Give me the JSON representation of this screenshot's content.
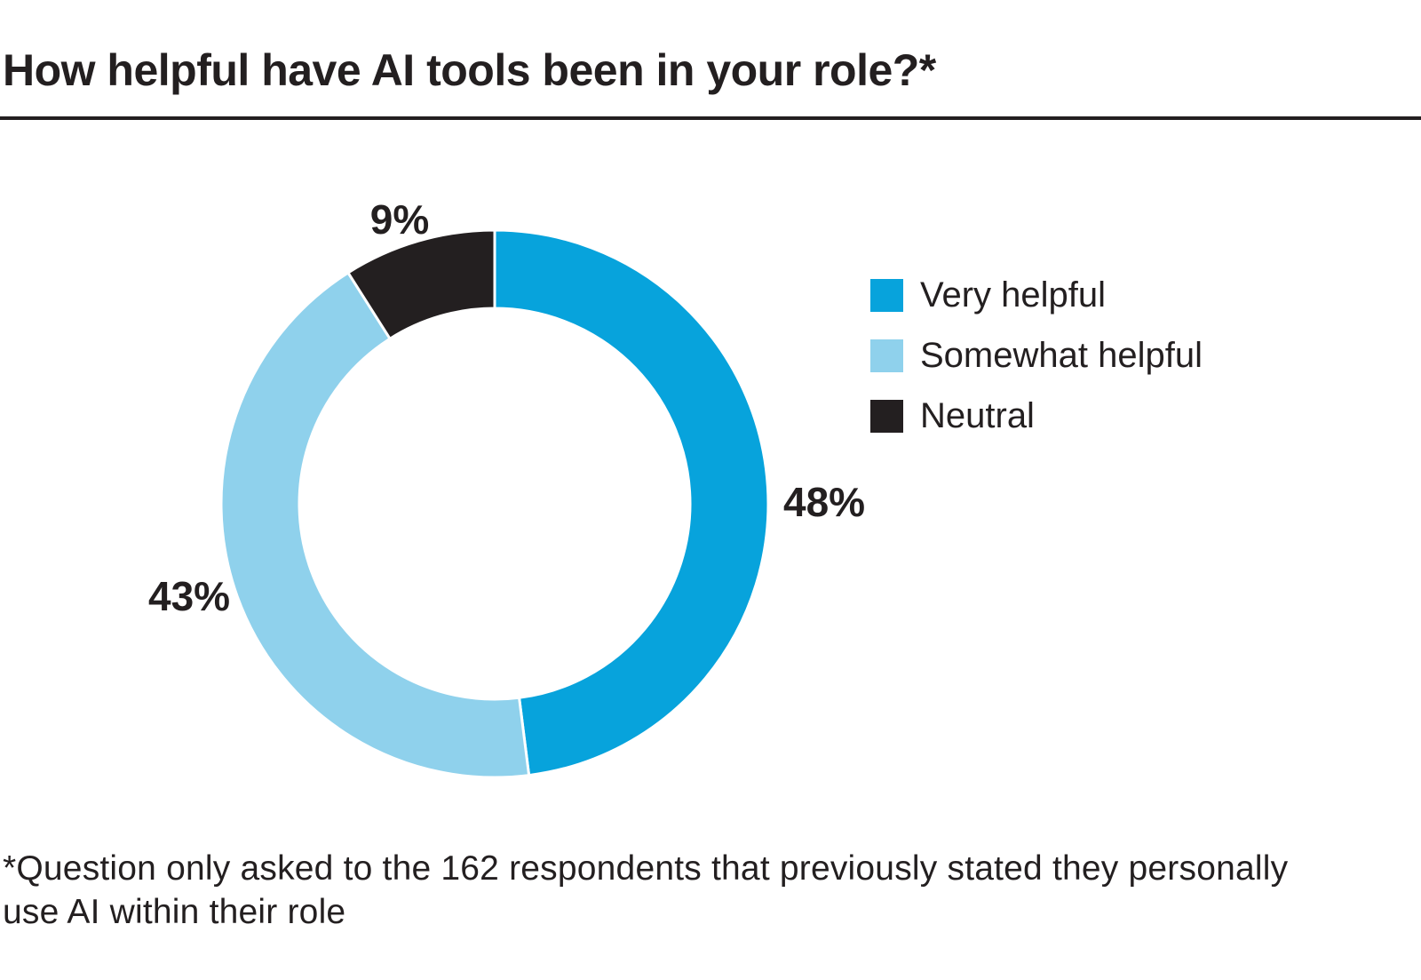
{
  "header": {
    "title": "How helpful have AI tools been in your role?*"
  },
  "chart_data": {
    "type": "pie",
    "donut": true,
    "title": "How helpful have AI tools been in your role?*",
    "categories": [
      "Very helpful",
      "Somewhat helpful",
      "Neutral"
    ],
    "values": [
      48,
      43,
      9
    ],
    "value_labels": [
      "48%",
      "43%",
      "9%"
    ],
    "colors": [
      "#07a3dc",
      "#8fd1ec",
      "#231f20"
    ],
    "start_angle_deg": 0,
    "direction": "clockwise",
    "inner_radius_ratio": 0.715,
    "legend_position": "right",
    "segment_gap_color": "#ffffff"
  },
  "legend": {
    "items": [
      {
        "label": "Very helpful",
        "color": "#07a3dc",
        "swatch": "square-swatch"
      },
      {
        "label": "Somewhat helpful",
        "color": "#8fd1ec",
        "swatch": "square-swatch"
      },
      {
        "label": "Neutral",
        "color": "#231f20",
        "swatch": "square-swatch"
      }
    ]
  },
  "footnote": {
    "lines": [
      "*Question only asked to the 162 respondents that previously stated they personally",
      "use AI within their role"
    ]
  }
}
